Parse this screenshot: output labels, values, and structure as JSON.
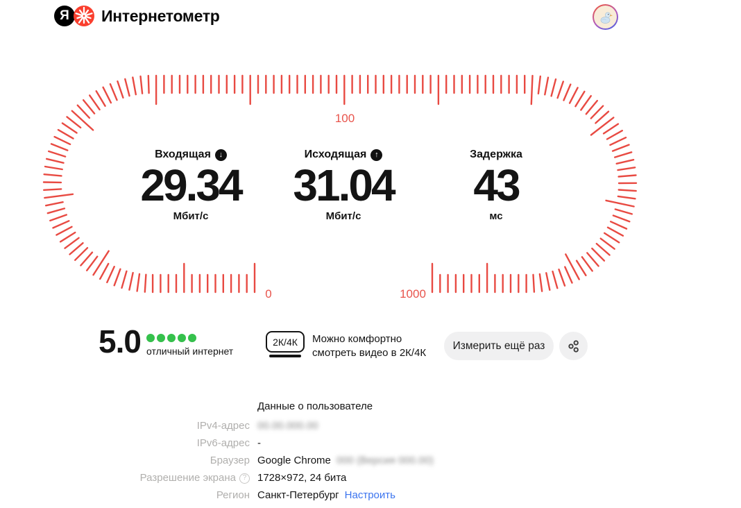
{
  "colors": {
    "logo_red": "#fa3f2e",
    "tick_red": "#e84a42",
    "gauge_label_red": "#e8544c",
    "dot_green": "#35c14c",
    "link_blue": "#3b74ef"
  },
  "header": {
    "logo_letter": "Я",
    "brand": "Интернетометр",
    "avatar_icon": "duck-avatar"
  },
  "gauge": {
    "scale_min_label": "0",
    "scale_mid_label": "100",
    "scale_max_label": "1000"
  },
  "stats": {
    "incoming": {
      "label": "Входящая",
      "icon_glyph": "↓",
      "value": "29.34",
      "unit": "Мбит/с"
    },
    "outgoing": {
      "label": "Исходящая",
      "icon_glyph": "↑",
      "value": "31.04",
      "unit": "Мбит/с"
    },
    "latency": {
      "label": "Задержка",
      "value": "43",
      "unit": "мс"
    }
  },
  "rating": {
    "score": "5.0",
    "dots": 5,
    "caption": "отличный интернет"
  },
  "quality": {
    "badge": "2К/4К",
    "text_line1": "Можно комфортно",
    "text_line2": "смотреть видео в 2К/4К"
  },
  "actions": {
    "measure_again": "Измерить ещё раз",
    "share_icon": "share"
  },
  "user_data": {
    "heading": "Данные о пользователе",
    "ipv4_label": "IPv4-адрес",
    "ipv4_value_blurred": "00.00.000.00",
    "ipv6_label": "IPv6-адрес",
    "ipv6_value": "-",
    "browser_label": "Браузер",
    "browser_value": "Google Chrome",
    "browser_version_blurred": "000 (Версия 000.00)",
    "screen_label": "Разрешение экрана",
    "screen_help_glyph": "?",
    "screen_value": "1728×972, 24 бита",
    "region_label": "Регион",
    "region_value": "Санкт-Петербург",
    "region_link": "Настроить"
  }
}
